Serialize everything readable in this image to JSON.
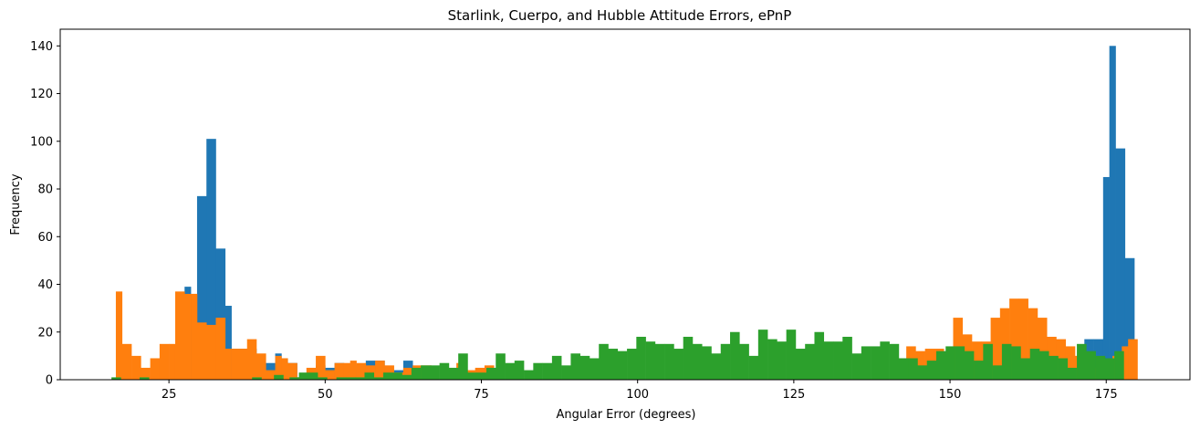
{
  "chart_data": {
    "type": "bar",
    "title": "Starlink, Cuerpo, and Hubble Attitude Errors, ePnP",
    "xlabel": "Angular Error (degrees)",
    "ylabel": "Frequency",
    "xlim": [
      7.6,
      188.4
    ],
    "ylim": [
      0,
      147
    ],
    "xticks": [
      25,
      50,
      75,
      100,
      125,
      150,
      175
    ],
    "yticks": [
      0,
      20,
      40,
      60,
      80,
      100,
      120,
      140
    ],
    "series": [
      {
        "color": "#1f77b4",
        "bins": [
          [
            24.5,
            26,
            0
          ],
          [
            26,
            27.5,
            0
          ],
          [
            27.5,
            28.5,
            39
          ],
          [
            28.5,
            29.5,
            36
          ],
          [
            29.5,
            31,
            77
          ],
          [
            31,
            32.5,
            101
          ],
          [
            32.5,
            34,
            55
          ],
          [
            34,
            35,
            31
          ],
          [
            35,
            36,
            13
          ],
          [
            36,
            37.5,
            13
          ],
          [
            37.5,
            39,
            13
          ],
          [
            39,
            40.5,
            0
          ],
          [
            40.5,
            42,
            7
          ],
          [
            42,
            43,
            11
          ],
          [
            43,
            44,
            9
          ],
          [
            44,
            45.5,
            7
          ],
          [
            45.5,
            47,
            1
          ],
          [
            47,
            48.5,
            2
          ],
          [
            48.5,
            50,
            6
          ],
          [
            50,
            51.5,
            5
          ],
          [
            51.5,
            53,
            7
          ],
          [
            53,
            54,
            6
          ],
          [
            54,
            55,
            6
          ],
          [
            55,
            56.5,
            4
          ],
          [
            56.5,
            58,
            8
          ],
          [
            58,
            59.5,
            8
          ],
          [
            59.5,
            61,
            4
          ],
          [
            61,
            62.5,
            4
          ],
          [
            62.5,
            64,
            8
          ],
          [
            64,
            65.5,
            5
          ],
          [
            171.5,
            173,
            17
          ],
          [
            173,
            174.5,
            17
          ],
          [
            174.5,
            175.5,
            85
          ],
          [
            175.5,
            176.5,
            140
          ],
          [
            176.5,
            178,
            97
          ],
          [
            178,
            179.5,
            51
          ]
        ]
      },
      {
        "color": "#ff7f0e",
        "bins": [
          [
            16.5,
            17.5,
            37
          ],
          [
            17.5,
            19,
            15
          ],
          [
            19,
            20.5,
            10
          ],
          [
            20.5,
            22,
            5
          ],
          [
            22,
            23.5,
            9
          ],
          [
            23.5,
            25,
            15
          ],
          [
            25,
            26,
            15
          ],
          [
            26,
            27.5,
            37
          ],
          [
            27.5,
            28.5,
            36
          ],
          [
            28.5,
            29.5,
            36
          ],
          [
            29.5,
            31,
            24
          ],
          [
            31,
            32.5,
            23
          ],
          [
            32.5,
            34,
            26
          ],
          [
            34,
            35,
            13
          ],
          [
            35,
            36,
            13
          ],
          [
            36,
            37.5,
            13
          ],
          [
            37.5,
            39,
            17
          ],
          [
            39,
            40.5,
            11
          ],
          [
            40.5,
            42,
            4
          ],
          [
            42,
            43,
            10
          ],
          [
            43,
            44,
            9
          ],
          [
            44,
            45.5,
            7
          ],
          [
            45.5,
            47,
            1
          ],
          [
            47,
            48.5,
            5
          ],
          [
            48.5,
            50,
            10
          ],
          [
            50,
            51.5,
            4
          ],
          [
            51.5,
            53,
            7
          ],
          [
            53,
            54,
            7
          ],
          [
            54,
            55,
            8
          ],
          [
            55,
            56.5,
            7
          ],
          [
            56.5,
            58,
            6
          ],
          [
            58,
            59.5,
            8
          ],
          [
            59.5,
            61,
            6
          ],
          [
            61,
            62.5,
            3
          ],
          [
            62.5,
            64,
            5
          ],
          [
            64,
            65.5,
            6
          ],
          [
            65.5,
            67,
            6
          ],
          [
            71,
            72.5,
            7
          ],
          [
            72.5,
            74,
            4
          ],
          [
            74,
            75.5,
            5
          ],
          [
            75.5,
            77,
            6
          ],
          [
            143,
            144.5,
            14
          ],
          [
            144.5,
            146,
            12
          ],
          [
            146,
            147.5,
            13
          ],
          [
            147.5,
            149,
            13
          ],
          [
            149,
            150.5,
            11
          ],
          [
            150.5,
            152,
            26
          ],
          [
            152,
            153.5,
            19
          ],
          [
            153.5,
            155,
            16
          ],
          [
            155,
            156.5,
            16
          ],
          [
            156.5,
            158,
            26
          ],
          [
            158,
            159.5,
            30
          ],
          [
            159.5,
            161,
            34
          ],
          [
            161,
            162.5,
            34
          ],
          [
            162.5,
            164,
            30
          ],
          [
            164,
            165.5,
            26
          ],
          [
            165.5,
            167,
            18
          ],
          [
            167,
            168.5,
            17
          ],
          [
            168.5,
            170,
            14
          ],
          [
            170,
            171.5,
            10
          ],
          [
            171.5,
            173,
            8
          ],
          [
            173,
            174.5,
            5
          ],
          [
            174.5,
            176,
            0
          ],
          [
            176,
            177.5,
            10
          ],
          [
            177.5,
            178.5,
            14
          ],
          [
            178.5,
            180,
            17
          ]
        ]
      },
      {
        "color": "#2ca02c",
        "bins": [
          [
            15.8,
            17.3,
            1
          ],
          [
            17.3,
            18.8,
            0
          ],
          [
            20.3,
            21.8,
            1
          ],
          [
            38.3,
            39.8,
            1
          ],
          [
            41.8,
            43.3,
            2
          ],
          [
            44.3,
            45.8,
            1
          ],
          [
            45.8,
            47.3,
            3
          ],
          [
            47.3,
            48.8,
            3
          ],
          [
            48.8,
            50.3,
            1
          ],
          [
            50.3,
            51.8,
            0
          ],
          [
            51.8,
            53.3,
            1
          ],
          [
            53.3,
            54.8,
            1
          ],
          [
            54.8,
            56.3,
            1
          ],
          [
            56.3,
            57.8,
            3
          ],
          [
            57.8,
            59.3,
            1
          ],
          [
            59.3,
            60.8,
            3
          ],
          [
            60.8,
            62.3,
            3
          ],
          [
            62.3,
            63.8,
            2
          ],
          [
            63.8,
            65.3,
            5
          ],
          [
            65.3,
            66.8,
            6
          ],
          [
            66.8,
            68.3,
            6
          ],
          [
            68.3,
            69.8,
            7
          ],
          [
            69.8,
            71.3,
            5
          ],
          [
            71.3,
            72.8,
            11
          ],
          [
            72.8,
            74.3,
            3
          ],
          [
            74.3,
            75.8,
            3
          ],
          [
            75.8,
            77.3,
            5
          ],
          [
            77.3,
            78.8,
            11
          ],
          [
            78.8,
            80.3,
            7
          ],
          [
            80.3,
            81.8,
            8
          ],
          [
            81.8,
            83.3,
            4
          ],
          [
            83.3,
            84.8,
            7
          ],
          [
            84.8,
            86.3,
            7
          ],
          [
            86.3,
            87.8,
            10
          ],
          [
            87.8,
            89.3,
            6
          ],
          [
            89.3,
            90.8,
            11
          ],
          [
            90.8,
            92.3,
            10
          ],
          [
            92.3,
            93.8,
            9
          ],
          [
            93.8,
            95.3,
            15
          ],
          [
            95.3,
            96.8,
            13
          ],
          [
            96.8,
            98.3,
            12
          ],
          [
            98.3,
            99.8,
            13
          ],
          [
            99.8,
            101.3,
            18
          ],
          [
            101.3,
            102.8,
            16
          ],
          [
            102.8,
            104.3,
            15
          ],
          [
            104.3,
            105.8,
            15
          ],
          [
            105.8,
            107.3,
            13
          ],
          [
            107.3,
            108.8,
            18
          ],
          [
            108.8,
            110.3,
            15
          ],
          [
            110.3,
            111.8,
            14
          ],
          [
            111.8,
            113.3,
            11
          ],
          [
            113.3,
            114.8,
            15
          ],
          [
            114.8,
            116.3,
            20
          ],
          [
            116.3,
            117.8,
            15
          ],
          [
            117.8,
            119.3,
            10
          ],
          [
            119.3,
            120.8,
            21
          ],
          [
            120.8,
            122.3,
            17
          ],
          [
            122.3,
            123.8,
            16
          ],
          [
            123.8,
            125.3,
            21
          ],
          [
            125.3,
            126.8,
            13
          ],
          [
            126.8,
            128.3,
            15
          ],
          [
            128.3,
            129.8,
            20
          ],
          [
            129.8,
            131.3,
            16
          ],
          [
            131.3,
            132.8,
            16
          ],
          [
            132.8,
            134.3,
            18
          ],
          [
            134.3,
            135.8,
            11
          ],
          [
            135.8,
            137.3,
            14
          ],
          [
            137.3,
            138.8,
            14
          ],
          [
            138.8,
            140.3,
            16
          ],
          [
            140.3,
            141.8,
            15
          ],
          [
            141.8,
            143.3,
            9
          ],
          [
            143.3,
            144.8,
            9
          ],
          [
            144.8,
            146.3,
            6
          ],
          [
            146.3,
            147.8,
            8
          ],
          [
            147.8,
            149.3,
            12
          ],
          [
            149.3,
            150.8,
            14
          ],
          [
            150.8,
            152.3,
            14
          ],
          [
            152.3,
            153.8,
            12
          ],
          [
            153.8,
            155.3,
            8
          ],
          [
            155.3,
            156.8,
            15
          ],
          [
            156.8,
            158.3,
            6
          ],
          [
            158.3,
            159.8,
            15
          ],
          [
            159.8,
            161.3,
            14
          ],
          [
            161.3,
            162.8,
            9
          ],
          [
            162.8,
            164.3,
            13
          ],
          [
            164.3,
            165.8,
            12
          ],
          [
            165.8,
            167.3,
            10
          ],
          [
            167.3,
            168.8,
            9
          ],
          [
            168.8,
            170.3,
            5
          ],
          [
            170.3,
            171.8,
            15
          ],
          [
            171.8,
            173.3,
            12
          ],
          [
            173.3,
            174.8,
            10
          ],
          [
            174.8,
            176.3,
            9
          ],
          [
            176.3,
            177.8,
            12
          ]
        ]
      }
    ]
  }
}
